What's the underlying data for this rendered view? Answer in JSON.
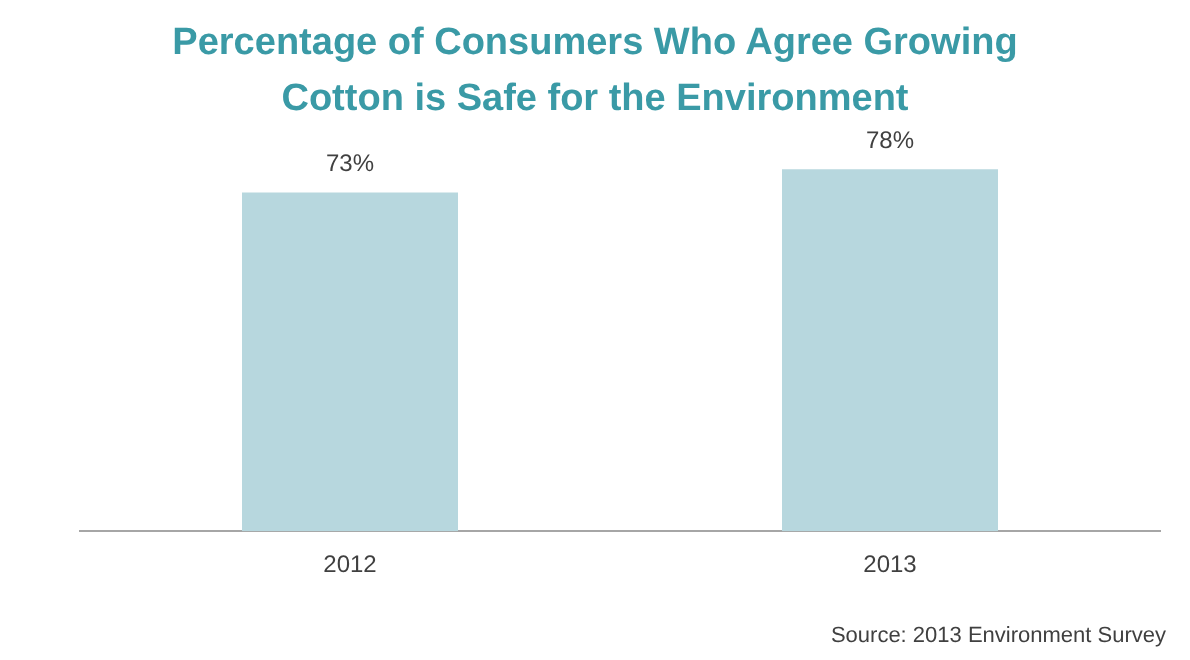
{
  "chart_data": {
    "type": "bar",
    "title": "Percentage of Consumers Who Agree Growing\nCotton is Safe for the Environment",
    "categories": [
      "2012",
      "2013"
    ],
    "values": [
      73,
      78
    ],
    "value_labels": [
      "73%",
      "78%"
    ],
    "color": "#b7d7de",
    "tick_labels": "x",
    "grid": false,
    "legend": false,
    "annotations": [
      "Source: 2013 Environment Survey"
    ]
  }
}
